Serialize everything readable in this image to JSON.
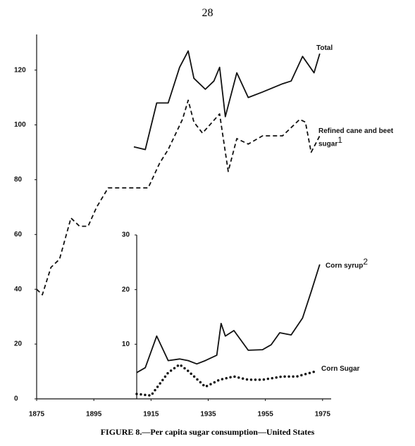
{
  "page_number": "28",
  "caption": "FIGURE 8.—Per capita sugar consumption—United States",
  "chart_data": [
    {
      "type": "line",
      "xlim": [
        1875,
        1978
      ],
      "ylim": [
        0,
        133
      ],
      "xticks": [
        1875,
        1895,
        1915,
        1935,
        1955,
        1975
      ],
      "yticks": [
        0,
        20,
        40,
        60,
        80,
        100,
        120
      ],
      "series": [
        {
          "name": "Total",
          "color": "#111",
          "style": "solid",
          "x": [
            1909,
            1913,
            1917,
            1921,
            1925,
            1928,
            1930,
            1934,
            1937,
            1939,
            1941,
            1945,
            1949,
            1954,
            1961,
            1964,
            1968,
            1972,
            1974
          ],
          "values": [
            92,
            91,
            108,
            108,
            121,
            127,
            117,
            113,
            116,
            121,
            103,
            119,
            110,
            112,
            115,
            116,
            125,
            119,
            126
          ]
        },
        {
          "name": "Refined cane and beet sugar",
          "note": "1",
          "color": "#111",
          "style": "dashed",
          "x": [
            1875,
            1877,
            1880,
            1883,
            1887,
            1890,
            1893,
            1896,
            1900,
            1905,
            1914,
            1918,
            1921,
            1926,
            1928,
            1930,
            1933,
            1939,
            1942,
            1945,
            1949,
            1954,
            1961,
            1967,
            1969,
            1971,
            1974
          ],
          "values": [
            40,
            38,
            48,
            51,
            66,
            63,
            63,
            70,
            77,
            77,
            77,
            86,
            91,
            102,
            109,
            101,
            97,
            104,
            83,
            95,
            93,
            96,
            96,
            102,
            101,
            90,
            96
          ]
        }
      ]
    },
    {
      "type": "line",
      "xlim": [
        1910,
        1978
      ],
      "ylim": [
        0,
        30
      ],
      "yticks": [
        10,
        20,
        30
      ],
      "series": [
        {
          "name": "Corn syrup",
          "note": "2",
          "color": "#111",
          "style": "solid",
          "x": [
            1910,
            1913,
            1917,
            1921,
            1925,
            1928,
            1931,
            1934,
            1938,
            1939.5,
            1941,
            1944,
            1949,
            1954,
            1957,
            1960,
            1964,
            1968,
            1971,
            1974
          ],
          "values": [
            4.8,
            5.7,
            11.5,
            7,
            7.3,
            7,
            6.4,
            7,
            8,
            13.8,
            11.5,
            12.5,
            8.9,
            9,
            9.9,
            12.1,
            11.7,
            14.8,
            19.6,
            24.6
          ]
        },
        {
          "name": "Corn Sugar",
          "color": "#111",
          "style": "dotted",
          "x": [
            1910,
            1915,
            1921,
            1925,
            1928,
            1934,
            1939,
            1944,
            1949,
            1954,
            1961,
            1966,
            1973
          ],
          "values": [
            0.9,
            0.6,
            4.8,
            6.3,
            5.1,
            2.2,
            3.5,
            4.1,
            3.5,
            3.5,
            4.1,
            4.1,
            5.1
          ]
        }
      ]
    }
  ]
}
